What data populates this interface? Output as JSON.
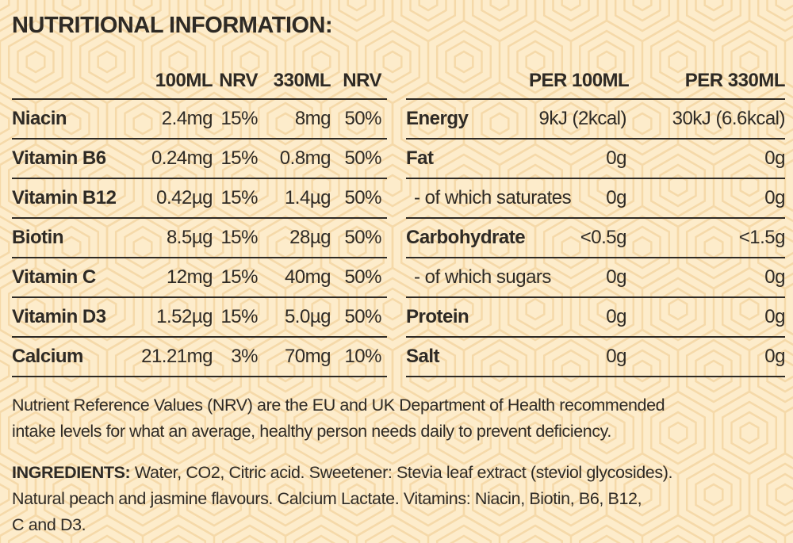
{
  "colors": {
    "background": "#fdeccb",
    "pattern_line": "#f5d9a9",
    "text": "#2e2a25",
    "rule": "#2e2a25"
  },
  "title": "NUTRITIONAL INFORMATION:",
  "vitamins_table": {
    "headers": [
      "",
      "100ML",
      "NRV",
      "330ML",
      "NRV"
    ],
    "rows": [
      {
        "label": "Niacin",
        "values": [
          "2.4mg",
          "15%",
          "8mg",
          "50%"
        ],
        "sub": false
      },
      {
        "label": "Vitamin B6",
        "values": [
          "0.24mg",
          "15%",
          "0.8mg",
          "50%"
        ],
        "sub": false
      },
      {
        "label": "Vitamin B12",
        "values": [
          "0.42µg",
          "15%",
          "1.4µg",
          "50%"
        ],
        "sub": false
      },
      {
        "label": "Biotin",
        "values": [
          "8.5µg",
          "15%",
          "28µg",
          "50%"
        ],
        "sub": false
      },
      {
        "label": "Vitamin C",
        "values": [
          "12mg",
          "15%",
          "40mg",
          "50%"
        ],
        "sub": false
      },
      {
        "label": "Vitamin D3",
        "values": [
          "1.52µg",
          "15%",
          "5.0µg",
          "50%"
        ],
        "sub": false
      },
      {
        "label": "Calcium",
        "values": [
          "21.21mg",
          "3%",
          "70mg",
          "10%"
        ],
        "sub": false
      }
    ]
  },
  "macros_table": {
    "headers": [
      "",
      "PER 100ML",
      "PER 330ML"
    ],
    "rows": [
      {
        "label": "Energy",
        "values": [
          "9kJ (2kcal)",
          "30kJ (6.6kcal)"
        ],
        "sub": false
      },
      {
        "label": "Fat",
        "values": [
          "0g",
          "0g"
        ],
        "sub": false
      },
      {
        "label": "- of which saturates",
        "values": [
          "0g",
          "0g"
        ],
        "sub": true
      },
      {
        "label": "Carbohydrate",
        "values": [
          "<0.5g",
          "<1.5g"
        ],
        "sub": false
      },
      {
        "label": "- of which sugars",
        "values": [
          "0g",
          "0g"
        ],
        "sub": true
      },
      {
        "label": "Protein",
        "values": [
          "0g",
          "0g"
        ],
        "sub": false
      },
      {
        "label": "Salt",
        "values": [
          "0g",
          "0g"
        ],
        "sub": false
      }
    ]
  },
  "nrv_note": {
    "lines": [
      "Nutrient Reference Values (NRV) are the EU and UK Department of Health recommended",
      "intake levels for what an average, healthy person needs daily to prevent deficiency."
    ]
  },
  "ingredients": {
    "label": "INGREDIENTS:",
    "lines": [
      "Water, CO2, Citric acid. Sweetener: Stevia leaf extract (steviol glycosides).",
      "Natural peach and jasmine flavours. Calcium Lactate. Vitamins: Niacin, Biotin, B6, B12,",
      "C and D3."
    ]
  }
}
